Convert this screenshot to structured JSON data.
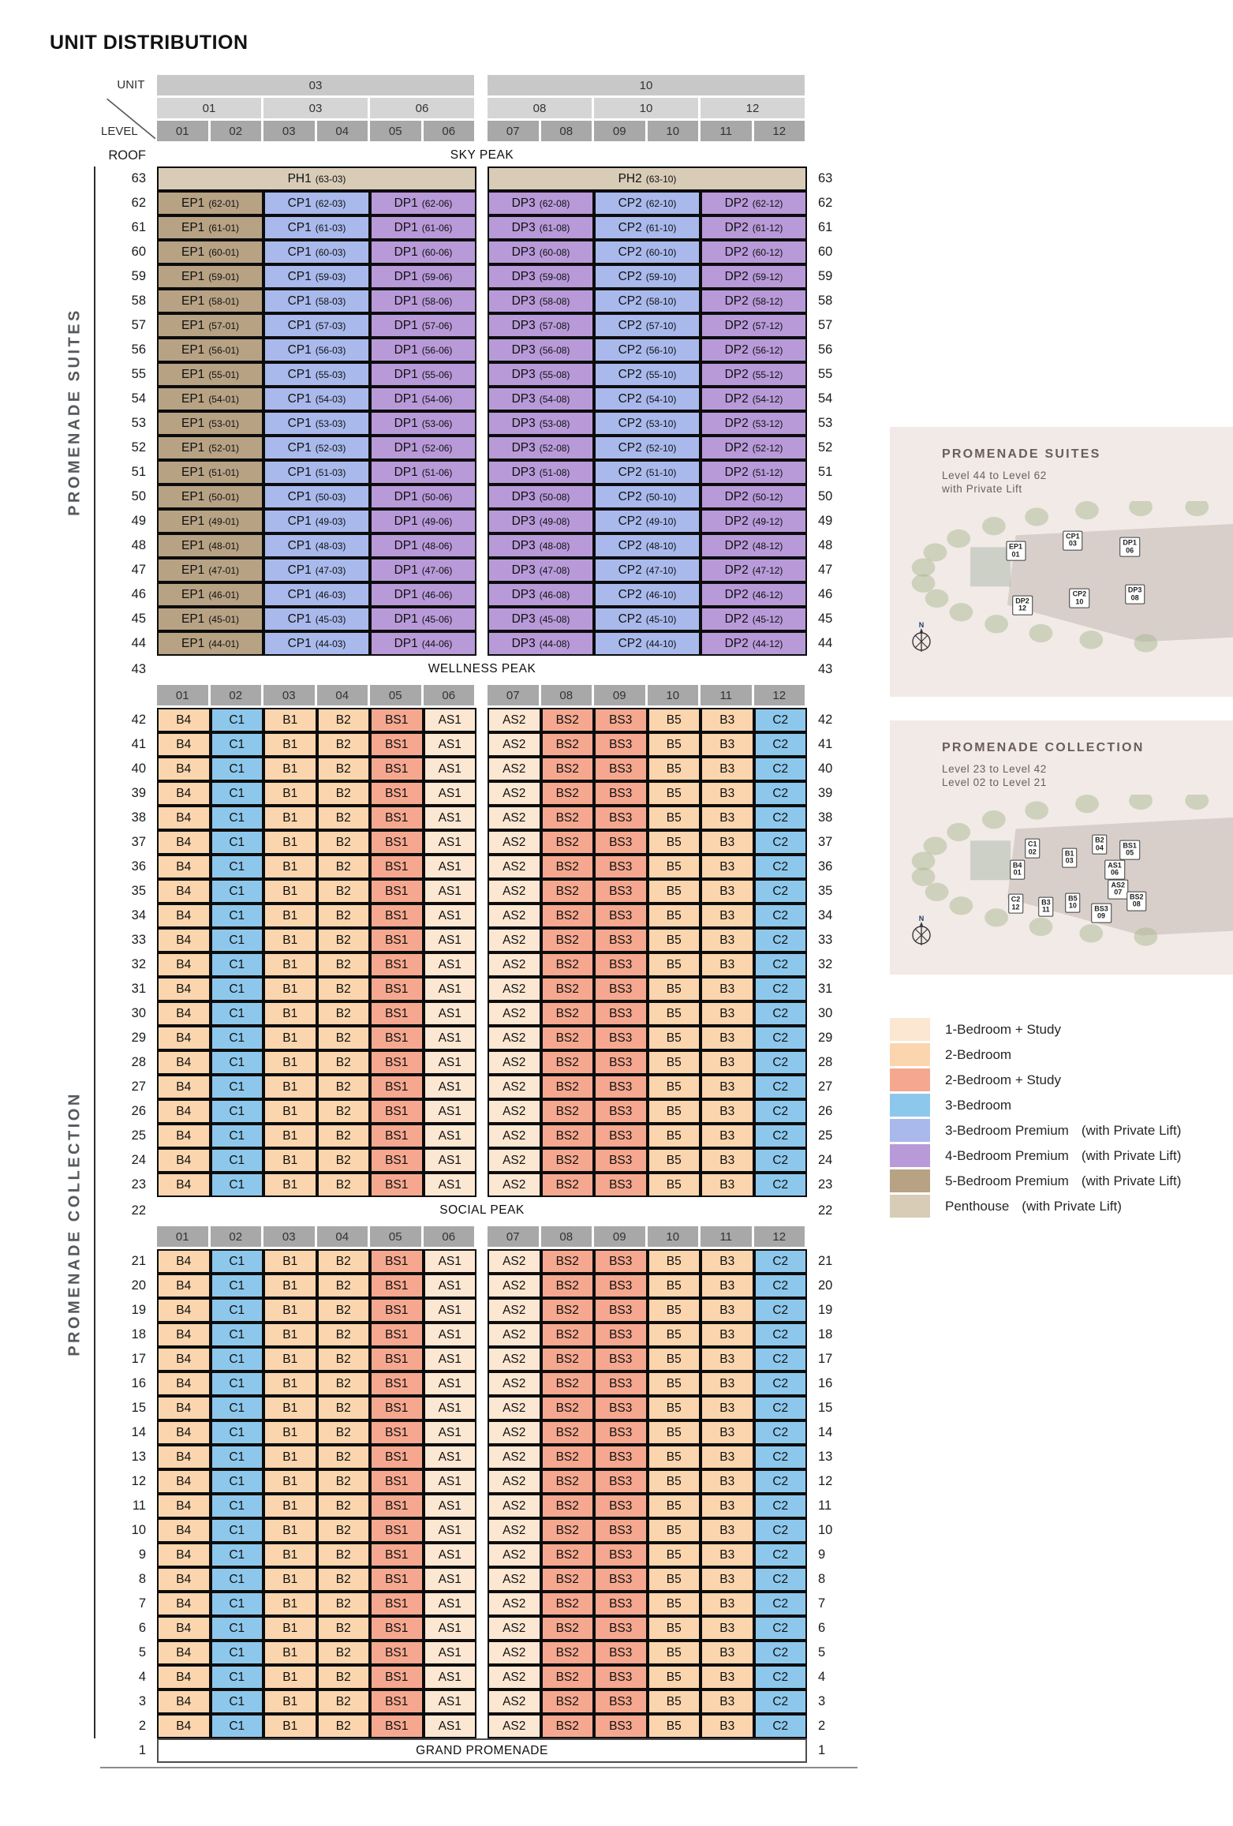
{
  "title": "UNIT DISTRIBUTION",
  "axis": {
    "unit_label": "UNIT",
    "level_label": "LEVEL",
    "roof_label": "ROOF",
    "stack_groups": [
      "03",
      "10"
    ],
    "pair_groups": [
      "01",
      "03",
      "06",
      "08",
      "10",
      "12"
    ],
    "columns": [
      "01",
      "02",
      "03",
      "04",
      "05",
      "06",
      "07",
      "08",
      "09",
      "10",
      "11",
      "12"
    ]
  },
  "bands": {
    "sky": "SKY PEAK",
    "wellness": "WELLNESS PEAK",
    "social": "SOCIAL PEAK",
    "grand": "GRAND PROMENADE"
  },
  "band_levels": {
    "wellness": "43",
    "social": "22",
    "grand": "1"
  },
  "side_labels": [
    "PROMENADE SUITES",
    "PROMENADE COLLECTION"
  ],
  "colors": {
    "penthouse": "#d8ccb7",
    "5br": "#b7a284",
    "4br": "#b89ad9",
    "3brp": "#a9b9ec",
    "3br": "#8dc8ec",
    "2br": "#fbd5ad",
    "2brs": "#f5a88f",
    "1brs": "#fce7d2"
  },
  "suites": {
    "penthouse_level": "63",
    "penthouse": [
      {
        "code": "PH1",
        "unit": "(63-03)"
      },
      {
        "code": "PH2",
        "unit": "(63-10)"
      }
    ],
    "level_start": 62,
    "level_end": 44,
    "stacks": [
      {
        "code": "EP1",
        "suffix": "01",
        "type": "5br"
      },
      {
        "code": "CP1",
        "suffix": "03",
        "type": "3brp"
      },
      {
        "code": "DP1",
        "suffix": "06",
        "type": "4br"
      },
      {
        "code": "DP3",
        "suffix": "08",
        "type": "4br"
      },
      {
        "code": "CP2",
        "suffix": "10",
        "type": "3brp"
      },
      {
        "code": "DP2",
        "suffix": "12",
        "type": "4br"
      }
    ]
  },
  "collection": {
    "upper": {
      "start": 42,
      "end": 23
    },
    "lower": {
      "start": 21,
      "end": 2
    },
    "stacks": [
      {
        "code": "B4",
        "type": "2br"
      },
      {
        "code": "C1",
        "type": "3br"
      },
      {
        "code": "B1",
        "type": "2br"
      },
      {
        "code": "B2",
        "type": "2br"
      },
      {
        "code": "BS1",
        "type": "2brs"
      },
      {
        "code": "AS1",
        "type": "1brs"
      },
      {
        "code": "AS2",
        "type": "1brs"
      },
      {
        "code": "BS2",
        "type": "2brs"
      },
      {
        "code": "BS3",
        "type": "2brs"
      },
      {
        "code": "B5",
        "type": "2br"
      },
      {
        "code": "B3",
        "type": "2br"
      },
      {
        "code": "C2",
        "type": "3br"
      }
    ]
  },
  "panels": [
    {
      "title": "PROMENADE SUITES",
      "lines": [
        "Level 44 to Level 62",
        "with Private Lift"
      ],
      "plan_labels": [
        "EP1 01",
        "CP1 03",
        "DP1 06",
        "DP2 12",
        "CP2 10",
        "DP3 08"
      ]
    },
    {
      "title": "PROMENADE COLLECTION",
      "lines": [
        "Level 23 to Level 42",
        "Level 02 to Level 21"
      ],
      "plan_labels": [
        "B4 01",
        "C1 02",
        "B1 03",
        "B2 04",
        "BS1 05",
        "AS1 06",
        "AS2 07",
        "BS2 08",
        "BS3 09",
        "B5 10",
        "B3 11",
        "C2 12"
      ]
    }
  ],
  "compass_label": "N",
  "legend": [
    {
      "label": "1-Bedroom + Study",
      "suffix": "",
      "type": "1brs"
    },
    {
      "label": "2-Bedroom",
      "suffix": "",
      "type": "2br"
    },
    {
      "label": "2-Bedroom + Study",
      "suffix": "",
      "type": "2brs"
    },
    {
      "label": "3-Bedroom",
      "suffix": "",
      "type": "3br"
    },
    {
      "label": "3-Bedroom Premium",
      "suffix": "(with Private Lift)",
      "type": "3brp"
    },
    {
      "label": "4-Bedroom Premium",
      "suffix": "(with Private Lift)",
      "type": "4br"
    },
    {
      "label": "5-Bedroom Premium",
      "suffix": "(with Private Lift)",
      "type": "5br"
    },
    {
      "label": "Penthouse",
      "suffix": "(with Private Lift)",
      "type": "penthouse"
    }
  ]
}
